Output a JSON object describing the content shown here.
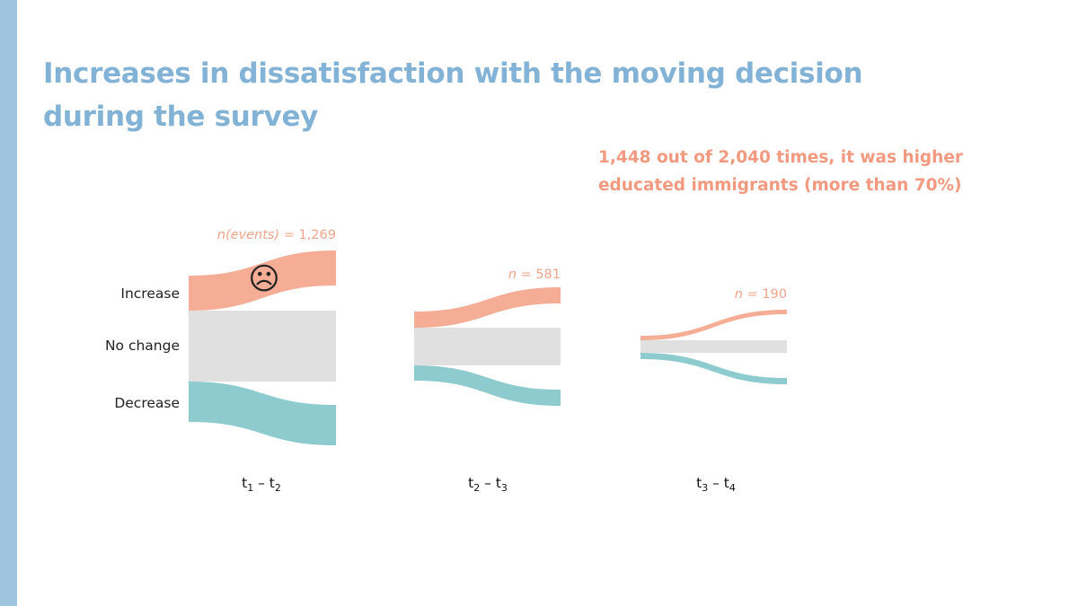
{
  "slide": {
    "title": "Increases in dissatisfaction with the moving decision during the survey",
    "callout": [
      "1,448 out of 2,040 times, it was higher",
      "educated immigrants (more than 70%)"
    ],
    "colors": {
      "bar": "#9fc5de",
      "title": "#82b3d6",
      "callout": "#f2997f"
    }
  },
  "chart_data": {
    "type": "sankey",
    "title": "",
    "row_labels": [
      "Increase",
      "No change",
      "Decrease"
    ],
    "colors": {
      "Increase": "#f5ad96",
      "No change": "#e0e0e0",
      "Decrease": "#8dcbce",
      "n_label": "#f2a48b"
    },
    "icon": "sad-face-icon",
    "icon_glyph": "☹",
    "periods": [
      {
        "label_base": "t",
        "from": "1",
        "to": "2",
        "n_label": "n(events) = 1,269",
        "n": 1269
      },
      {
        "label_base": "t",
        "from": "2",
        "to": "3",
        "n_label": "n = 581",
        "n": 581
      },
      {
        "label_base": "t",
        "from": "3",
        "to": "4",
        "n_label": "n = 190",
        "n": 190
      }
    ],
    "period_separator": " – "
  }
}
